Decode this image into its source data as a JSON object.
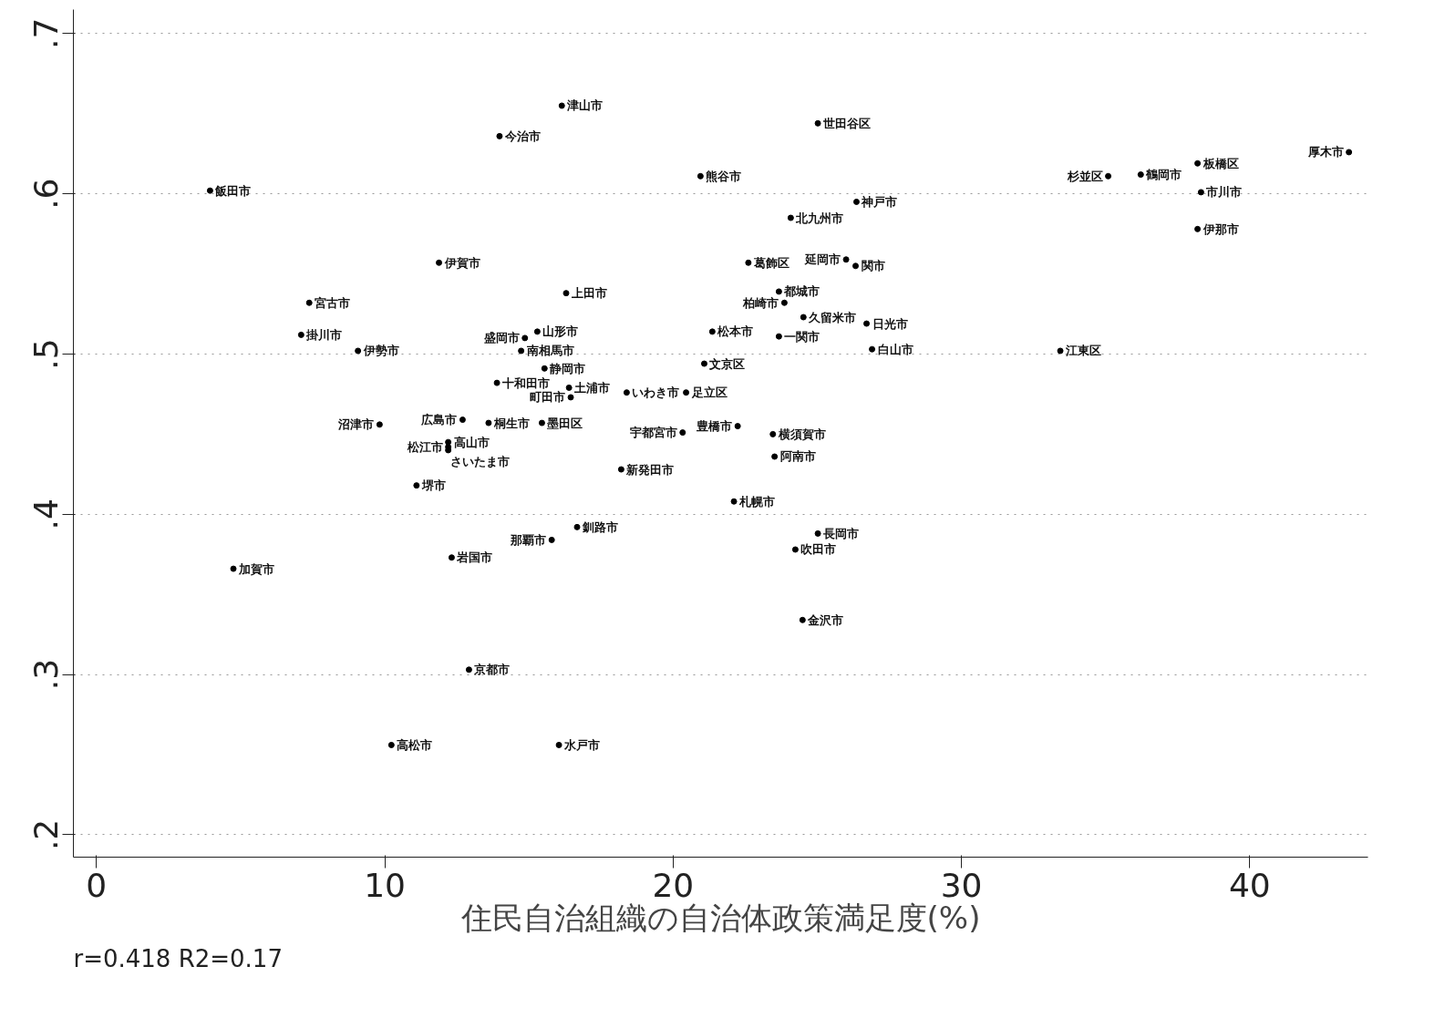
{
  "chart_data": {
    "type": "scatter",
    "xlabel": "住民自治組織の自治体政策満足度(%)",
    "xlim": [
      -0.8,
      44.1
    ],
    "ylim": [
      0.186,
      0.715
    ],
    "xticks": [
      0,
      10,
      20,
      30,
      40
    ],
    "yticks": [
      {
        "value": 0.2,
        "label": ".2"
      },
      {
        "value": 0.3,
        "label": ".3"
      },
      {
        "value": 0.4,
        "label": ".4"
      },
      {
        "value": 0.5,
        "label": ".5"
      },
      {
        "value": 0.6,
        "label": ".6"
      },
      {
        "value": 0.7,
        "label": ".7"
      }
    ],
    "grid": "y",
    "marker": "circle",
    "series": [
      {
        "color": "#000000",
        "x": [
          16.14,
          13.98,
          3.94,
          25.02,
          20.95,
          26.36,
          24.08,
          38.19,
          36.22,
          35.09,
          38.31,
          38.19,
          43.44,
          11.88,
          22.61,
          26.0,
          26.33,
          23.67,
          23.86,
          24.52,
          26.71,
          21.36,
          23.67,
          26.9,
          21.08,
          33.43,
          7.38,
          16.29,
          7.1,
          9.07,
          14.86,
          15.29,
          14.73,
          15.54,
          13.89,
          16.39,
          16.45,
          18.39,
          20.45,
          12.7,
          13.6,
          15.45,
          9.82,
          12.2,
          12.2,
          12.2,
          11.1,
          18.2,
          20.33,
          22.24,
          23.46,
          23.52,
          22.11,
          25.02,
          24.24,
          24.49,
          16.67,
          15.79,
          12.32,
          4.75,
          12.92,
          10.23,
          16.04
        ],
        "values": [
          0.655,
          0.636,
          0.602,
          0.644,
          0.611,
          0.595,
          0.585,
          0.619,
          0.612,
          0.611,
          0.601,
          0.578,
          0.626,
          0.557,
          0.557,
          0.559,
          0.555,
          0.539,
          0.532,
          0.523,
          0.519,
          0.514,
          0.511,
          0.503,
          0.494,
          0.502,
          0.532,
          0.538,
          0.512,
          0.502,
          0.51,
          0.514,
          0.502,
          0.491,
          0.482,
          0.479,
          0.473,
          0.476,
          0.476,
          0.459,
          0.457,
          0.457,
          0.456,
          0.445,
          0.442,
          0.44,
          0.418,
          0.428,
          0.451,
          0.455,
          0.45,
          0.436,
          0.408,
          0.388,
          0.378,
          0.334,
          0.392,
          0.384,
          0.373,
          0.366,
          0.303,
          0.256,
          0.256
        ]
      }
    ],
    "annotations": [
      {
        "text": "津山市",
        "x": 16.14,
        "y": 0.655
      },
      {
        "text": "今治市",
        "x": 13.98,
        "y": 0.636
      },
      {
        "text": "飯田市",
        "x": 3.94,
        "y": 0.602
      },
      {
        "text": "世田谷区",
        "x": 25.02,
        "y": 0.644
      },
      {
        "text": "熊谷市",
        "x": 20.95,
        "y": 0.611
      },
      {
        "text": "神戸市",
        "x": 26.36,
        "y": 0.595
      },
      {
        "text": "北九州市",
        "x": 24.08,
        "y": 0.585
      },
      {
        "text": "板橋区",
        "x": 38.19,
        "y": 0.619
      },
      {
        "text": "鶴岡市",
        "x": 36.22,
        "y": 0.612
      },
      {
        "text": "杉並区",
        "x": 35.09,
        "y": 0.611
      },
      {
        "text": "市川市",
        "x": 38.31,
        "y": 0.601
      },
      {
        "text": "伊那市",
        "x": 38.19,
        "y": 0.578
      },
      {
        "text": "厚木市",
        "x": 43.44,
        "y": 0.626
      },
      {
        "text": "伊賀市",
        "x": 11.88,
        "y": 0.557
      },
      {
        "text": "葛飾区",
        "x": 22.61,
        "y": 0.557
      },
      {
        "text": "延岡市",
        "x": 26.0,
        "y": 0.559
      },
      {
        "text": "関市",
        "x": 26.33,
        "y": 0.555
      },
      {
        "text": "都城市",
        "x": 23.67,
        "y": 0.539
      },
      {
        "text": "柏崎市",
        "x": 23.86,
        "y": 0.532
      },
      {
        "text": "久留米市",
        "x": 24.52,
        "y": 0.523
      },
      {
        "text": "日光市",
        "x": 26.71,
        "y": 0.519
      },
      {
        "text": "松本市",
        "x": 21.36,
        "y": 0.514
      },
      {
        "text": "一関市",
        "x": 23.67,
        "y": 0.511
      },
      {
        "text": "白山市",
        "x": 26.9,
        "y": 0.503
      },
      {
        "text": "文京区",
        "x": 21.08,
        "y": 0.494
      },
      {
        "text": "江東区",
        "x": 33.43,
        "y": 0.502
      },
      {
        "text": "宮古市",
        "x": 7.38,
        "y": 0.532
      },
      {
        "text": "上田市",
        "x": 16.29,
        "y": 0.538
      },
      {
        "text": "掛川市",
        "x": 7.1,
        "y": 0.512
      },
      {
        "text": "伊勢市",
        "x": 9.07,
        "y": 0.502
      },
      {
        "text": "盛岡市",
        "x": 14.86,
        "y": 0.51
      },
      {
        "text": "山形市",
        "x": 15.29,
        "y": 0.514
      },
      {
        "text": "南相馬市",
        "x": 14.73,
        "y": 0.502
      },
      {
        "text": "静岡市",
        "x": 15.54,
        "y": 0.491
      },
      {
        "text": "十和田市",
        "x": 13.89,
        "y": 0.482
      },
      {
        "text": "土浦市",
        "x": 16.39,
        "y": 0.479
      },
      {
        "text": "町田市",
        "x": 16.45,
        "y": 0.473
      },
      {
        "text": "いわき市",
        "x": 18.39,
        "y": 0.476
      },
      {
        "text": "足立区",
        "x": 20.45,
        "y": 0.476
      },
      {
        "text": "広島市",
        "x": 12.7,
        "y": 0.459
      },
      {
        "text": "桐生市",
        "x": 13.6,
        "y": 0.457
      },
      {
        "text": "墨田区",
        "x": 15.45,
        "y": 0.457
      },
      {
        "text": "沼津市",
        "x": 9.82,
        "y": 0.456
      },
      {
        "text": "高山市",
        "x": 12.2,
        "y": 0.445
      },
      {
        "text": "松江市",
        "x": 12.2,
        "y": 0.442
      },
      {
        "text": "さいたま市",
        "x": 12.2,
        "y": 0.44
      },
      {
        "text": "堺市",
        "x": 11.1,
        "y": 0.418
      },
      {
        "text": "新発田市",
        "x": 18.2,
        "y": 0.428
      },
      {
        "text": "宇都宮市",
        "x": 20.33,
        "y": 0.451
      },
      {
        "text": "豊橋市",
        "x": 22.24,
        "y": 0.455
      },
      {
        "text": "横須賀市",
        "x": 23.46,
        "y": 0.45
      },
      {
        "text": "阿南市",
        "x": 23.52,
        "y": 0.436
      },
      {
        "text": "札幌市",
        "x": 22.11,
        "y": 0.408
      },
      {
        "text": "長岡市",
        "x": 25.02,
        "y": 0.388
      },
      {
        "text": "吹田市",
        "x": 24.24,
        "y": 0.378
      },
      {
        "text": "金沢市",
        "x": 24.49,
        "y": 0.334
      },
      {
        "text": "釧路市",
        "x": 16.67,
        "y": 0.392
      },
      {
        "text": "那覇市",
        "x": 15.79,
        "y": 0.384
      },
      {
        "text": "岩国市",
        "x": 12.32,
        "y": 0.373
      },
      {
        "text": "加賀市",
        "x": 4.75,
        "y": 0.366
      },
      {
        "text": "京都市",
        "x": 12.92,
        "y": 0.303
      },
      {
        "text": "高松市",
        "x": 10.23,
        "y": 0.256
      },
      {
        "text": "水戸市",
        "x": 16.04,
        "y": 0.256
      },
      "r=0.418   R2=0.17"
    ]
  }
}
